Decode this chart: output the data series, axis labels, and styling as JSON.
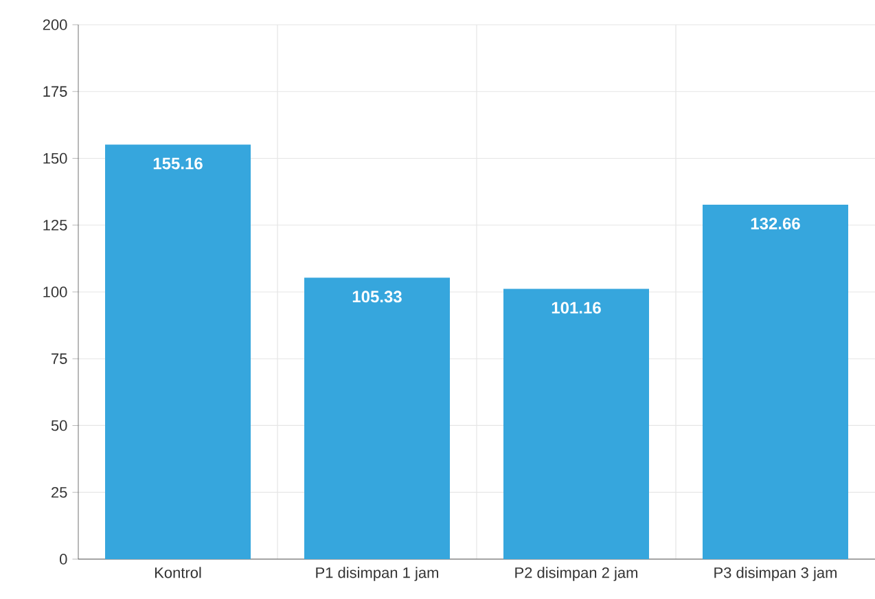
{
  "chart_data": {
    "type": "bar",
    "categories": [
      "Kontrol",
      "P1 disimpan 1 jam",
      "P2 disimpan 2 jam",
      "P3 disimpan 3 jam"
    ],
    "values": [
      155.16,
      105.33,
      101.16,
      132.66
    ],
    "color": "#36a6dd",
    "ylim": [
      0,
      200
    ],
    "yticks": [
      0,
      25,
      50,
      75,
      100,
      125,
      150,
      175,
      200
    ],
    "grid": true,
    "data_labels": true
  }
}
